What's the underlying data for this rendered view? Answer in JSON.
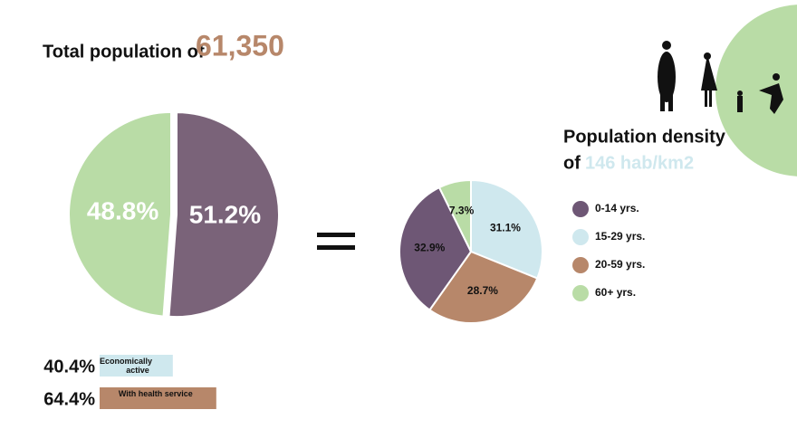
{
  "header": {
    "title": "Total population of",
    "total": "61,350"
  },
  "density": {
    "label": "Population density",
    "prefix": "of",
    "value": "146 hab/km2"
  },
  "chart_data": [
    {
      "type": "pie",
      "values": [
        48.8,
        51.2
      ],
      "value_labels": [
        "48.8%",
        "51.2%"
      ],
      "colors": [
        "#b9dca6",
        "#7a6379"
      ]
    },
    {
      "type": "pie",
      "categories": [
        "0-14 yrs.",
        "15-29 yrs.",
        "20-59 yrs.",
        "60+ yrs."
      ],
      "values": [
        32.9,
        31.1,
        28.7,
        7.3
      ],
      "value_labels": [
        "32.9%",
        "31.1%",
        "28.7%",
        "7.3%"
      ],
      "colors": [
        "#6e5775",
        "#cfe8ee",
        "#b7876a",
        "#b9dca6"
      ]
    },
    {
      "type": "bar",
      "categories": [
        "Economically active",
        "With health service"
      ],
      "values": [
        40.4,
        64.4
      ],
      "value_labels": [
        "40.4%",
        "64.4%"
      ],
      "colors": [
        "#cfe8ee",
        "#b7876a"
      ]
    }
  ]
}
